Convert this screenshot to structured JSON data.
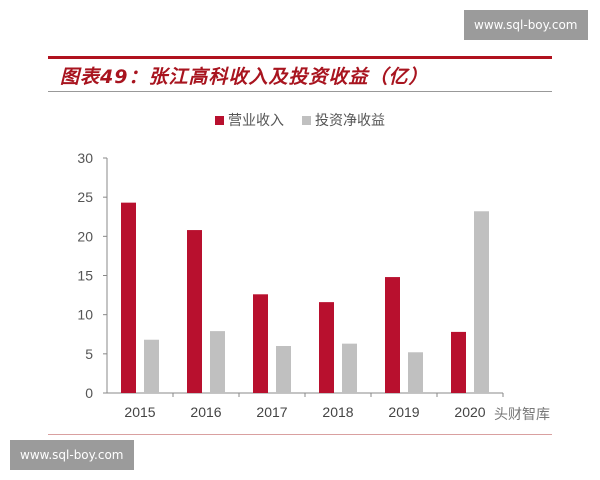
{
  "header": {
    "title": "图表49：张江高科收入及投资收益（亿）"
  },
  "watermarks": {
    "top_right": "www.sql-boy.com",
    "bottom_left": "www.sql-boy.com",
    "source": "头财智库"
  },
  "chart_data": {
    "type": "bar",
    "title": "图表49：张江高科收入及投资收益（亿）",
    "categories": [
      "2015",
      "2016",
      "2017",
      "2018",
      "2019",
      "2020"
    ],
    "series": [
      {
        "name": "营业收入",
        "color": "#b8102e",
        "values": [
          24.3,
          20.8,
          12.6,
          11.6,
          14.8,
          7.8
        ]
      },
      {
        "name": "投资净收益",
        "color": "#c0c0c0",
        "values": [
          6.8,
          7.9,
          6.0,
          6.3,
          5.2,
          23.2
        ]
      }
    ],
    "ylim": [
      0,
      30
    ],
    "yticks": [
      "0",
      "5",
      "10",
      "15",
      "20",
      "25",
      "30"
    ],
    "legend": "top",
    "grid": false
  }
}
